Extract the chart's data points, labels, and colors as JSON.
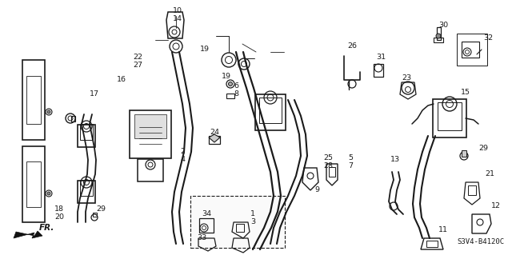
{
  "bg_color": "#ffffff",
  "diagram_code": "S3V4-B4120C",
  "line_color": "#1a1a1a",
  "text_color": "#1a1a1a",
  "font_size": 7.0,
  "figsize": [
    6.4,
    3.19
  ],
  "dpi": 100
}
